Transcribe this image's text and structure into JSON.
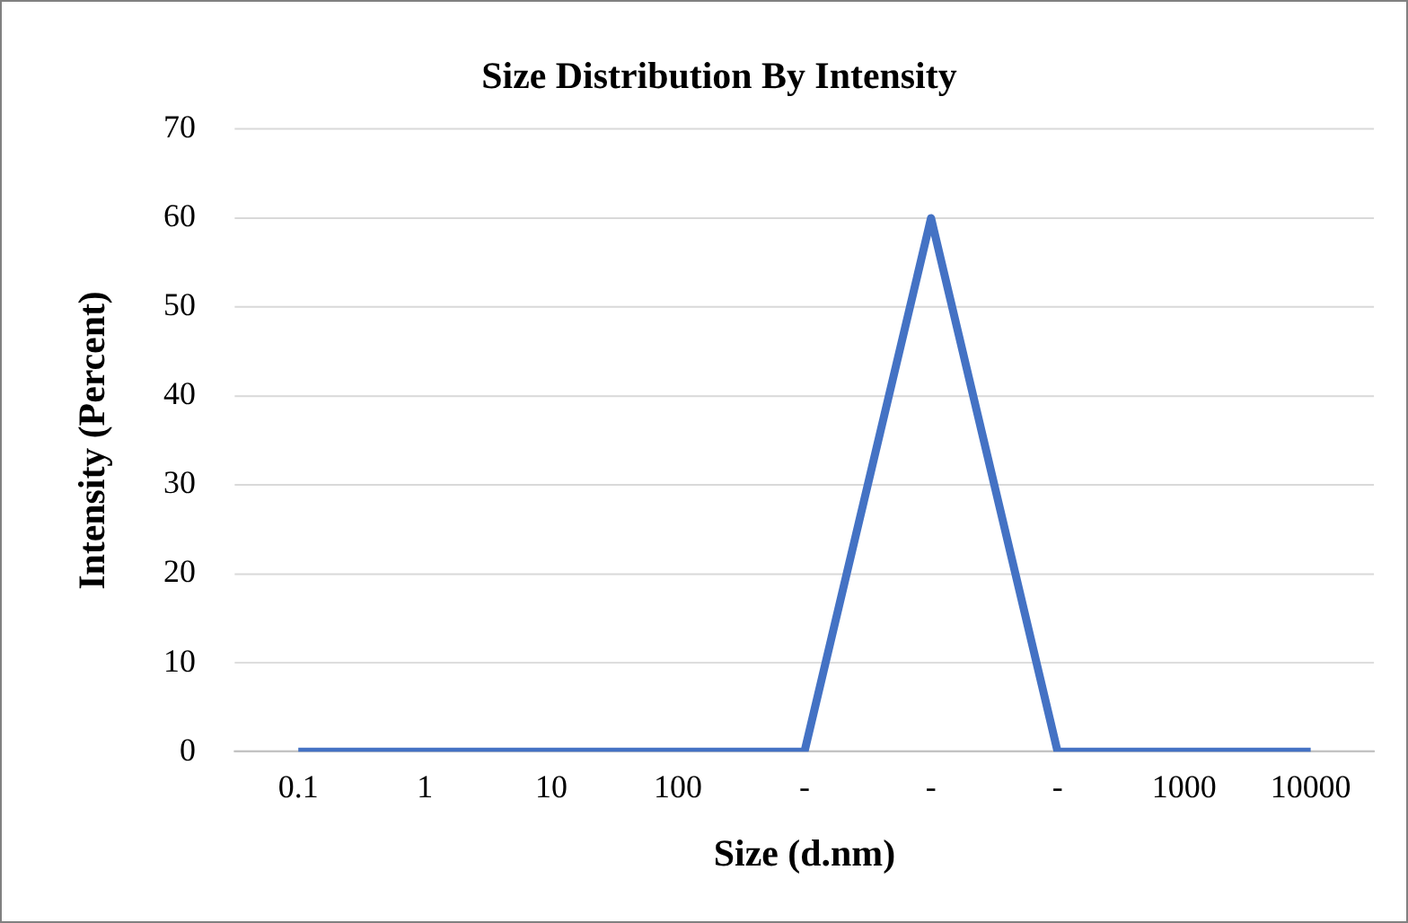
{
  "chart_data": {
    "type": "line",
    "title": "Size Distribution By Intensity",
    "xlabel": "Size (d.nm)",
    "ylabel": "Intensity (Percent)",
    "categories": [
      "0.1",
      "1",
      "10",
      "100",
      "-",
      "-",
      "-",
      "1000",
      "10000"
    ],
    "series": [
      {
        "color": "#4472c4",
        "values": [
          0,
          0,
          0,
          0,
          0,
          60,
          0,
          0,
          0
        ]
      }
    ],
    "ylim": [
      0,
      70
    ],
    "yticks": [
      0,
      10,
      20,
      30,
      40,
      50,
      60,
      70
    ],
    "grid": "y",
    "legend": false,
    "marker": "none",
    "line_style": "solid"
  }
}
